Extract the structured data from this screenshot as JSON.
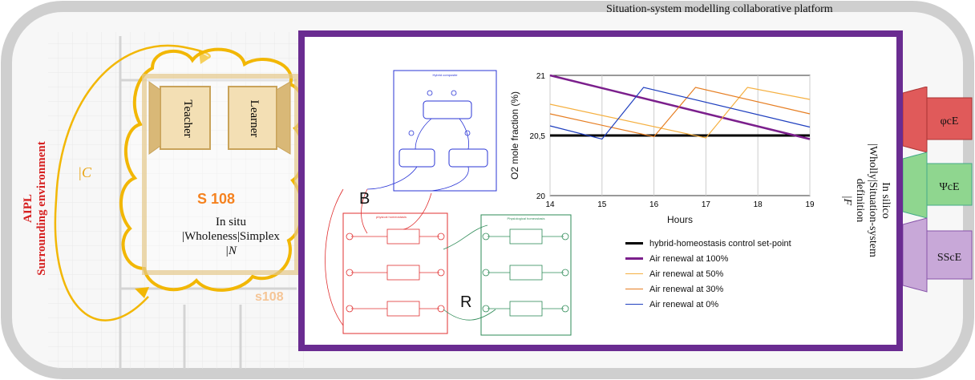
{
  "header": {
    "title": "Situation-system modelling collaborative platform"
  },
  "environment": {
    "line1": "AIPL",
    "line2": "Surrounding environment",
    "c_label": "|C"
  },
  "classroom": {
    "teacher": "Teacher",
    "learner": "Learner",
    "room": "S 108",
    "room_faint": "s108",
    "insitu_line1": "In situ",
    "insitu_line2": "|Wholeness|Simplex",
    "insitu_line3": "|N"
  },
  "insilico": {
    "line1": "In silico",
    "line2": "|Wholly|Situation-system",
    "line3": "definition",
    "line4": "|F"
  },
  "tabs": [
    {
      "label": "φcE",
      "color": "#e05a5a"
    },
    {
      "label": "ΨcE",
      "color": "#8fd68f"
    },
    {
      "label": "SScE",
      "color": "#c8a8d8"
    }
  ],
  "diagram_labels": {
    "balance_loop": "B",
    "reinforcing_loop": "R",
    "hybrid_composite": "Hybrid composite",
    "physical_homeostasis": "physical homeostasis",
    "physiological_homeostasis": "Physiological homeostasis"
  },
  "chart_data": {
    "type": "line",
    "xlabel": "Hours",
    "ylabel": "O2 mole fraction (%)",
    "xlim": [
      14,
      19
    ],
    "ylim": [
      20,
      21
    ],
    "xticks": [
      "14",
      "15",
      "16",
      "17",
      "18",
      "19"
    ],
    "yticks": [
      "20",
      "20,5",
      "21"
    ],
    "grid": "vertical",
    "legend_position": "bottom",
    "series": [
      {
        "name": "hybrid-homeostasis control set-point",
        "color": "#000000",
        "x": [
          14,
          19
        ],
        "y": [
          20.5,
          20.5
        ]
      },
      {
        "name": "Air renewal at 100%",
        "color": "#7b1f8c",
        "x": [
          14,
          19
        ],
        "y": [
          21.0,
          20.47
        ]
      },
      {
        "name": "Air renewal at 50%",
        "color": "#f5b041",
        "x": [
          14,
          17,
          17.8,
          19
        ],
        "y": [
          20.76,
          20.48,
          20.9,
          20.8
        ]
      },
      {
        "name": "Air renewal at 30%",
        "color": "#e67e22",
        "x": [
          14,
          16,
          16.8,
          19
        ],
        "y": [
          20.68,
          20.49,
          20.9,
          20.68
        ]
      },
      {
        "name": "Air renewal at 0%",
        "color": "#1f3fbf",
        "x": [
          14,
          15,
          15.8,
          19
        ],
        "y": [
          20.58,
          20.47,
          20.9,
          20.57
        ]
      }
    ]
  }
}
